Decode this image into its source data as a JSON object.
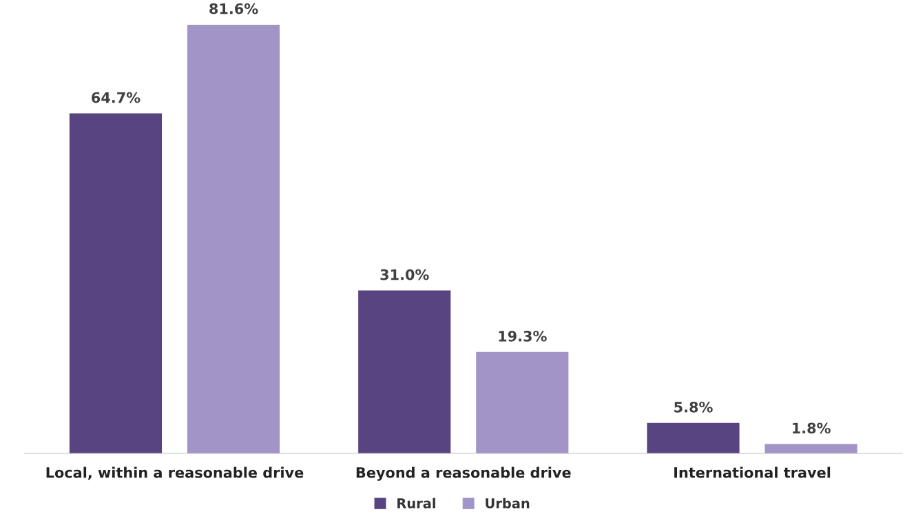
{
  "chart_data": {
    "type": "bar",
    "categories": [
      "Local, within a reasonable drive",
      "Beyond a reasonable drive",
      "International travel"
    ],
    "series": [
      {
        "name": "Rural",
        "color": "#584480",
        "values": [
          64.7,
          31.0,
          5.8
        ],
        "value_labels": [
          "64.7%",
          "31.0%",
          "5.8%"
        ]
      },
      {
        "name": "Urban",
        "color": "#a394c8",
        "values": [
          81.6,
          19.3,
          1.8
        ],
        "value_labels": [
          "81.6%",
          "19.3%",
          "1.8%"
        ]
      }
    ],
    "legend": "bottom",
    "grid": false,
    "tick_labels": "x"
  }
}
